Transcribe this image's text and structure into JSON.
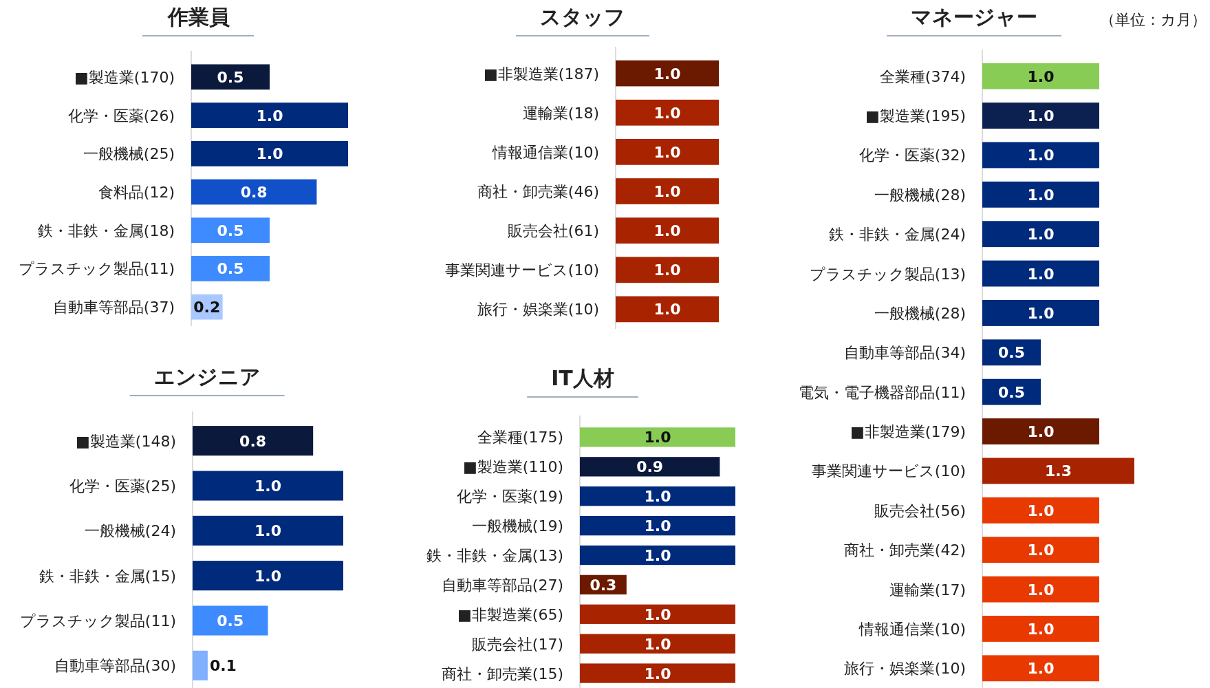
{
  "chart_data": [
    {
      "type": "bar",
      "orientation": "horizontal",
      "title": "作業員",
      "categories": [
        "■製造業(170)",
        "化学・医薬(26)",
        "一般機械(25)",
        "食料品(12)",
        "鉄・非鉄・金属(18)",
        "プラスチック製品(11)",
        "自動車等部品(37)"
      ],
      "values": [
        0.5,
        1.0,
        1.0,
        0.8,
        0.5,
        0.5,
        0.2
      ],
      "value_labels": [
        "0.5",
        "1.0",
        "1.0",
        "0.8",
        "0.5",
        "0.5",
        "0.2"
      ],
      "colors": [
        "#0b1a3c",
        "#002a7c",
        "#002a7c",
        "#1050c8",
        "#3d8bff",
        "#3d8bff",
        "#a8c8ff"
      ]
    },
    {
      "type": "bar",
      "orientation": "horizontal",
      "title": "スタッフ",
      "categories": [
        "■非製造業(187)",
        "運輸業(18)",
        "情報通信業(10)",
        "商社・卸売業(46)",
        "販売会社(61)",
        "事業関連サービス(10)",
        "旅行・娯楽業(10)"
      ],
      "values": [
        1.0,
        1.0,
        1.0,
        1.0,
        1.0,
        1.0,
        1.0
      ],
      "value_labels": [
        "1.0",
        "1.0",
        "1.0",
        "1.0",
        "1.0",
        "1.0",
        "1.0"
      ],
      "colors": [
        "#6b1a00",
        "#a82400",
        "#a82400",
        "#a82400",
        "#a82400",
        "#a82400",
        "#a82400"
      ]
    },
    {
      "type": "bar",
      "orientation": "horizontal",
      "title": "マネージャー",
      "annotations": [
        "（単位：カ月）"
      ],
      "categories": [
        "全業種(374)",
        "■製造業(195)",
        "化学・医薬(32)",
        "一般機械(28)",
        "鉄・非鉄・金属(24)",
        "プラスチック製品(13)",
        "一般機械(28)",
        "自動車等部品(34)",
        "電気・電子機器部品(11)",
        "■非製造業(179)",
        "事業関連サービス(10)",
        "販売会社(56)",
        "商社・卸売業(42)",
        "運輸業(17)",
        "情報通信業(10)",
        "旅行・娯楽業(10)"
      ],
      "values": [
        1.0,
        1.0,
        1.0,
        1.0,
        1.0,
        1.0,
        1.0,
        0.5,
        0.5,
        1.0,
        1.3,
        1.0,
        1.0,
        1.0,
        1.0,
        1.0
      ],
      "value_labels": [
        "1.0",
        "1.0",
        "1.0",
        "1.0",
        "1.0",
        "1.0",
        "1.0",
        "0.5",
        "0.5",
        "1.0",
        "1.3",
        "1.0",
        "1.0",
        "1.0",
        "1.0",
        "1.0"
      ],
      "colors": [
        "#88cc55",
        "#0c2150",
        "#002a7c",
        "#002a7c",
        "#002a7c",
        "#002a7c",
        "#002a7c",
        "#002a7c",
        "#002a7c",
        "#6b1a00",
        "#a82400",
        "#e83a00",
        "#e83a00",
        "#e83a00",
        "#e83a00",
        "#e83a00"
      ]
    },
    {
      "type": "bar",
      "orientation": "horizontal",
      "title": "エンジニア",
      "categories": [
        "■製造業(148)",
        "化学・医薬(25)",
        "一般機械(24)",
        "鉄・非鉄・金属(15)",
        "プラスチック製品(11)",
        "自動車等部品(30)"
      ],
      "values": [
        0.8,
        1.0,
        1.0,
        1.0,
        0.5,
        0.1
      ],
      "value_labels": [
        "0.8",
        "1.0",
        "1.0",
        "1.0",
        "0.5",
        "0.1"
      ],
      "colors": [
        "#0b1a3c",
        "#002a7c",
        "#002a7c",
        "#002a7c",
        "#3d8bff",
        "#80b0ff"
      ]
    },
    {
      "type": "bar",
      "orientation": "horizontal",
      "title": "IT人材",
      "categories": [
        "全業種(175)",
        "■製造業(110)",
        "化学・医薬(19)",
        "一般機械(19)",
        "鉄・非鉄・金属(13)",
        "自動車等部品(27)",
        "■非製造業(65)",
        "販売会社(17)",
        "商社・卸売業(15)"
      ],
      "values": [
        1.0,
        0.9,
        1.0,
        1.0,
        1.0,
        0.3,
        1.0,
        1.0,
        1.0
      ],
      "value_labels": [
        "1.0",
        "0.9",
        "1.0",
        "1.0",
        "1.0",
        "0.3",
        "1.0",
        "1.0",
        "1.0"
      ],
      "colors": [
        "#88cc55",
        "#0b1a3c",
        "#002a7c",
        "#002a7c",
        "#002a7c",
        "#6b1a00",
        "#a82400",
        "#a82400",
        "#a82400"
      ]
    }
  ]
}
